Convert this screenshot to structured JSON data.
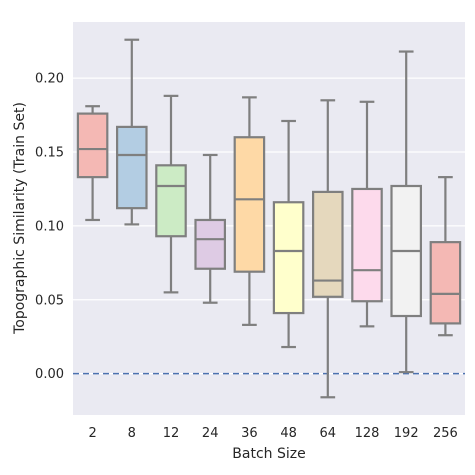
{
  "chart_data": {
    "type": "box",
    "xlabel": "Batch Size",
    "ylabel": "Topographic Similarity (Train Set)",
    "ylim": [
      -0.028,
      0.238
    ],
    "yticks": [
      0.0,
      0.05,
      0.1,
      0.15,
      0.2
    ],
    "ytick_labels": [
      "0.00",
      "0.05",
      "0.10",
      "0.15",
      "0.20"
    ],
    "grid": true,
    "reference_line": {
      "y": 0.0,
      "style": "dashed",
      "color": "#4c72b0"
    },
    "categories": [
      "2",
      "8",
      "12",
      "24",
      "36",
      "48",
      "64",
      "128",
      "192",
      "256"
    ],
    "boxes": [
      {
        "label": "2",
        "whisker_low": 0.104,
        "q1": 0.133,
        "median": 0.152,
        "q3": 0.176,
        "whisker_high": 0.181,
        "color": "#f4b8b4"
      },
      {
        "label": "8",
        "whisker_low": 0.101,
        "q1": 0.112,
        "median": 0.148,
        "q3": 0.167,
        "whisker_high": 0.226,
        "color": "#b3cde3"
      },
      {
        "label": "12",
        "whisker_low": 0.055,
        "q1": 0.093,
        "median": 0.127,
        "q3": 0.141,
        "whisker_high": 0.188,
        "color": "#ccebc5"
      },
      {
        "label": "24",
        "whisker_low": 0.048,
        "q1": 0.071,
        "median": 0.091,
        "q3": 0.104,
        "whisker_high": 0.148,
        "color": "#decbe4"
      },
      {
        "label": "36",
        "whisker_low": 0.033,
        "q1": 0.069,
        "median": 0.118,
        "q3": 0.16,
        "whisker_high": 0.187,
        "color": "#fed9a6"
      },
      {
        "label": "48",
        "whisker_low": 0.018,
        "q1": 0.041,
        "median": 0.083,
        "q3": 0.116,
        "whisker_high": 0.171,
        "color": "#ffffcc"
      },
      {
        "label": "64",
        "whisker_low": -0.016,
        "q1": 0.052,
        "median": 0.063,
        "q3": 0.123,
        "whisker_high": 0.185,
        "color": "#e5d8bd"
      },
      {
        "label": "128",
        "whisker_low": 0.032,
        "q1": 0.049,
        "median": 0.07,
        "q3": 0.125,
        "whisker_high": 0.184,
        "color": "#fddaec"
      },
      {
        "label": "192",
        "whisker_low": 0.001,
        "q1": 0.039,
        "median": 0.083,
        "q3": 0.127,
        "whisker_high": 0.218,
        "color": "#f2f2f2"
      },
      {
        "label": "256",
        "whisker_low": 0.026,
        "q1": 0.034,
        "median": 0.054,
        "q3": 0.089,
        "whisker_high": 0.133,
        "color": "#f4b8b4"
      }
    ],
    "colors": {
      "plot_background": "#eaeaf2",
      "grid": "#ffffff",
      "box_edge": "#7f7f7f",
      "text": "#262626"
    }
  }
}
